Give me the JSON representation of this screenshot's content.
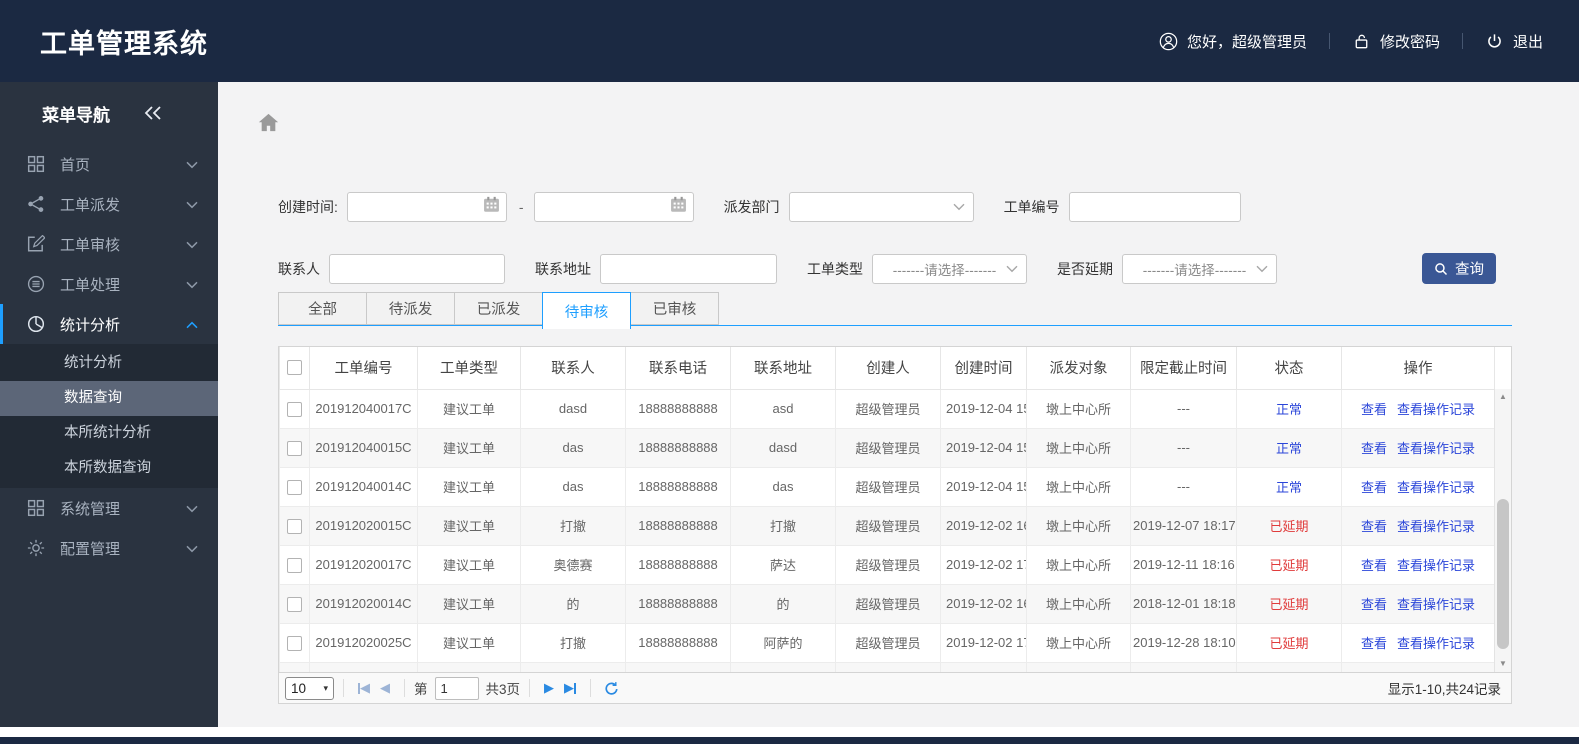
{
  "header": {
    "title": "工单管理系统",
    "greeting": "您好，超级管理员",
    "change_password": "修改密码",
    "logout": "退出"
  },
  "sidebar": {
    "nav_title": "菜单导航",
    "items": [
      {
        "label": "首页",
        "icon": "grid"
      },
      {
        "label": "工单派发",
        "icon": "share"
      },
      {
        "label": "工单审核",
        "icon": "edit"
      },
      {
        "label": "工单处理",
        "icon": "db"
      },
      {
        "label": "统计分析",
        "icon": "pie",
        "active": true,
        "children": [
          "统计分析",
          "数据查询",
          "本所统计分析",
          "本所数据查询"
        ],
        "selected_child": "数据查询"
      },
      {
        "label": "系统管理",
        "icon": "grid2"
      },
      {
        "label": "配置管理",
        "icon": "gear"
      }
    ]
  },
  "filters": {
    "create_time_label": "创建时间:",
    "range_separator": "-",
    "dispatch_dept_label": "派发部门",
    "order_no_label": "工单编号",
    "contact_label": "联系人",
    "address_label": "联系地址",
    "order_type_label": "工单类型",
    "delay_label": "是否延期",
    "select_placeholder": "-------请选择-------",
    "search_button": "查询"
  },
  "tabs": {
    "items": [
      "全部",
      "待派发",
      "已派发",
      "待审核",
      "已审核"
    ],
    "active": "待审核"
  },
  "table": {
    "columns": [
      "工单编号",
      "工单类型",
      "联系人",
      "联系电话",
      "联系地址",
      "创建人",
      "创建时间",
      "派发对象",
      "限定截止时间",
      "状态",
      "操作"
    ],
    "actions": {
      "view": "查看",
      "view_log": "查看操作记录"
    },
    "rows": [
      {
        "order_no": "201912040017C",
        "type": "建议工单",
        "contact": "dasd",
        "phone": "18888888888",
        "address": "asd",
        "creator": "超级管理员",
        "create_time": "2019-12-04 15",
        "dispatch_target": "墩上中心所",
        "deadline": "---",
        "status": "正常",
        "status_type": "normal"
      },
      {
        "order_no": "201912040015C",
        "type": "建议工单",
        "contact": "das",
        "phone": "18888888888",
        "address": "dasd",
        "creator": "超级管理员",
        "create_time": "2019-12-04 15",
        "dispatch_target": "墩上中心所",
        "deadline": "---",
        "status": "正常",
        "status_type": "normal"
      },
      {
        "order_no": "201912040014C",
        "type": "建议工单",
        "contact": "das",
        "phone": "18888888888",
        "address": "das",
        "creator": "超级管理员",
        "create_time": "2019-12-04 15",
        "dispatch_target": "墩上中心所",
        "deadline": "---",
        "status": "正常",
        "status_type": "normal"
      },
      {
        "order_no": "201912020015C",
        "type": "建议工单",
        "contact": "打撤",
        "phone": "18888888888",
        "address": "打撤",
        "creator": "超级管理员",
        "create_time": "2019-12-02 16",
        "dispatch_target": "墩上中心所",
        "deadline": "2019-12-07 18:17",
        "status": "已延期",
        "status_type": "delayed"
      },
      {
        "order_no": "201912020017C",
        "type": "建议工单",
        "contact": "奥德赛",
        "phone": "18888888888",
        "address": "萨达",
        "creator": "超级管理员",
        "create_time": "2019-12-02 17",
        "dispatch_target": "墩上中心所",
        "deadline": "2019-12-11 18:16",
        "status": "已延期",
        "status_type": "delayed"
      },
      {
        "order_no": "201912020014C",
        "type": "建议工单",
        "contact": "的",
        "phone": "18888888888",
        "address": "的",
        "creator": "超级管理员",
        "create_time": "2019-12-02 16",
        "dispatch_target": "墩上中心所",
        "deadline": "2018-12-01 18:18",
        "status": "已延期",
        "status_type": "delayed"
      },
      {
        "order_no": "201912020025C",
        "type": "建议工单",
        "contact": "打撤",
        "phone": "18888888888",
        "address": "阿萨的",
        "creator": "超级管理员",
        "create_time": "2019-12-02 17",
        "dispatch_target": "墩上中心所",
        "deadline": "2019-12-28 18:10",
        "status": "已延期",
        "status_type": "delayed"
      }
    ]
  },
  "pagination": {
    "page_size": "10",
    "page_label": "第",
    "current_page": "1",
    "total_pages_label": "共3页",
    "summary": "显示1-10,共24记录"
  },
  "colors": {
    "header_navy": "#1b2942",
    "accent_blue": "#1e9fff",
    "link_blue": "#2b46d9",
    "status_red": "#e03b3b",
    "button_blue": "#3a5795"
  }
}
